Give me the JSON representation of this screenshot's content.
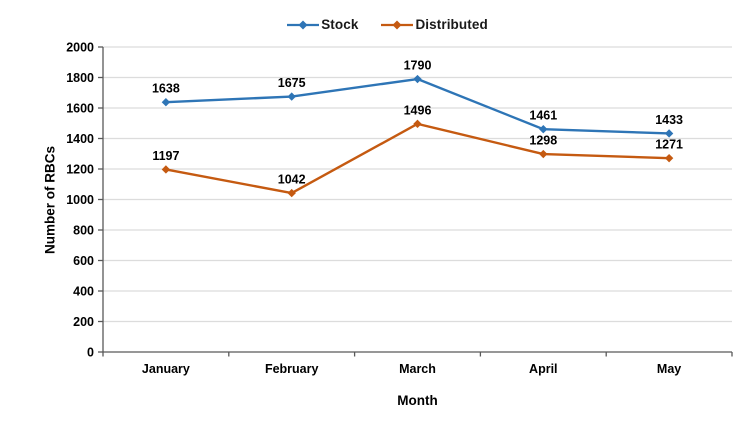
{
  "chart_data": {
    "type": "line",
    "categories": [
      "January",
      "February",
      "March",
      "April",
      "May"
    ],
    "series": [
      {
        "name": "Stock",
        "color": "#2E75B6",
        "values": [
          1638,
          1675,
          1790,
          1461,
          1433
        ]
      },
      {
        "name": "Distributed",
        "color": "#C55A11",
        "values": [
          1197,
          1042,
          1496,
          1298,
          1271
        ]
      }
    ],
    "xlabel": "Month",
    "ylabel": "Number of RBCs",
    "ylim": [
      0,
      2000
    ],
    "ytick_step": 200,
    "yticks": [
      "0",
      "200",
      "400",
      "600",
      "800",
      "1000",
      "1200",
      "1400",
      "1600",
      "1800",
      "2000"
    ],
    "grid": true,
    "legend_position": "top",
    "data_labels": true
  },
  "style": {
    "gridline_color": "#DCDCDC",
    "axis_color": "#595959",
    "tick_color": "#595959",
    "label_color": "#000000",
    "background": "#FFFFFF"
  }
}
